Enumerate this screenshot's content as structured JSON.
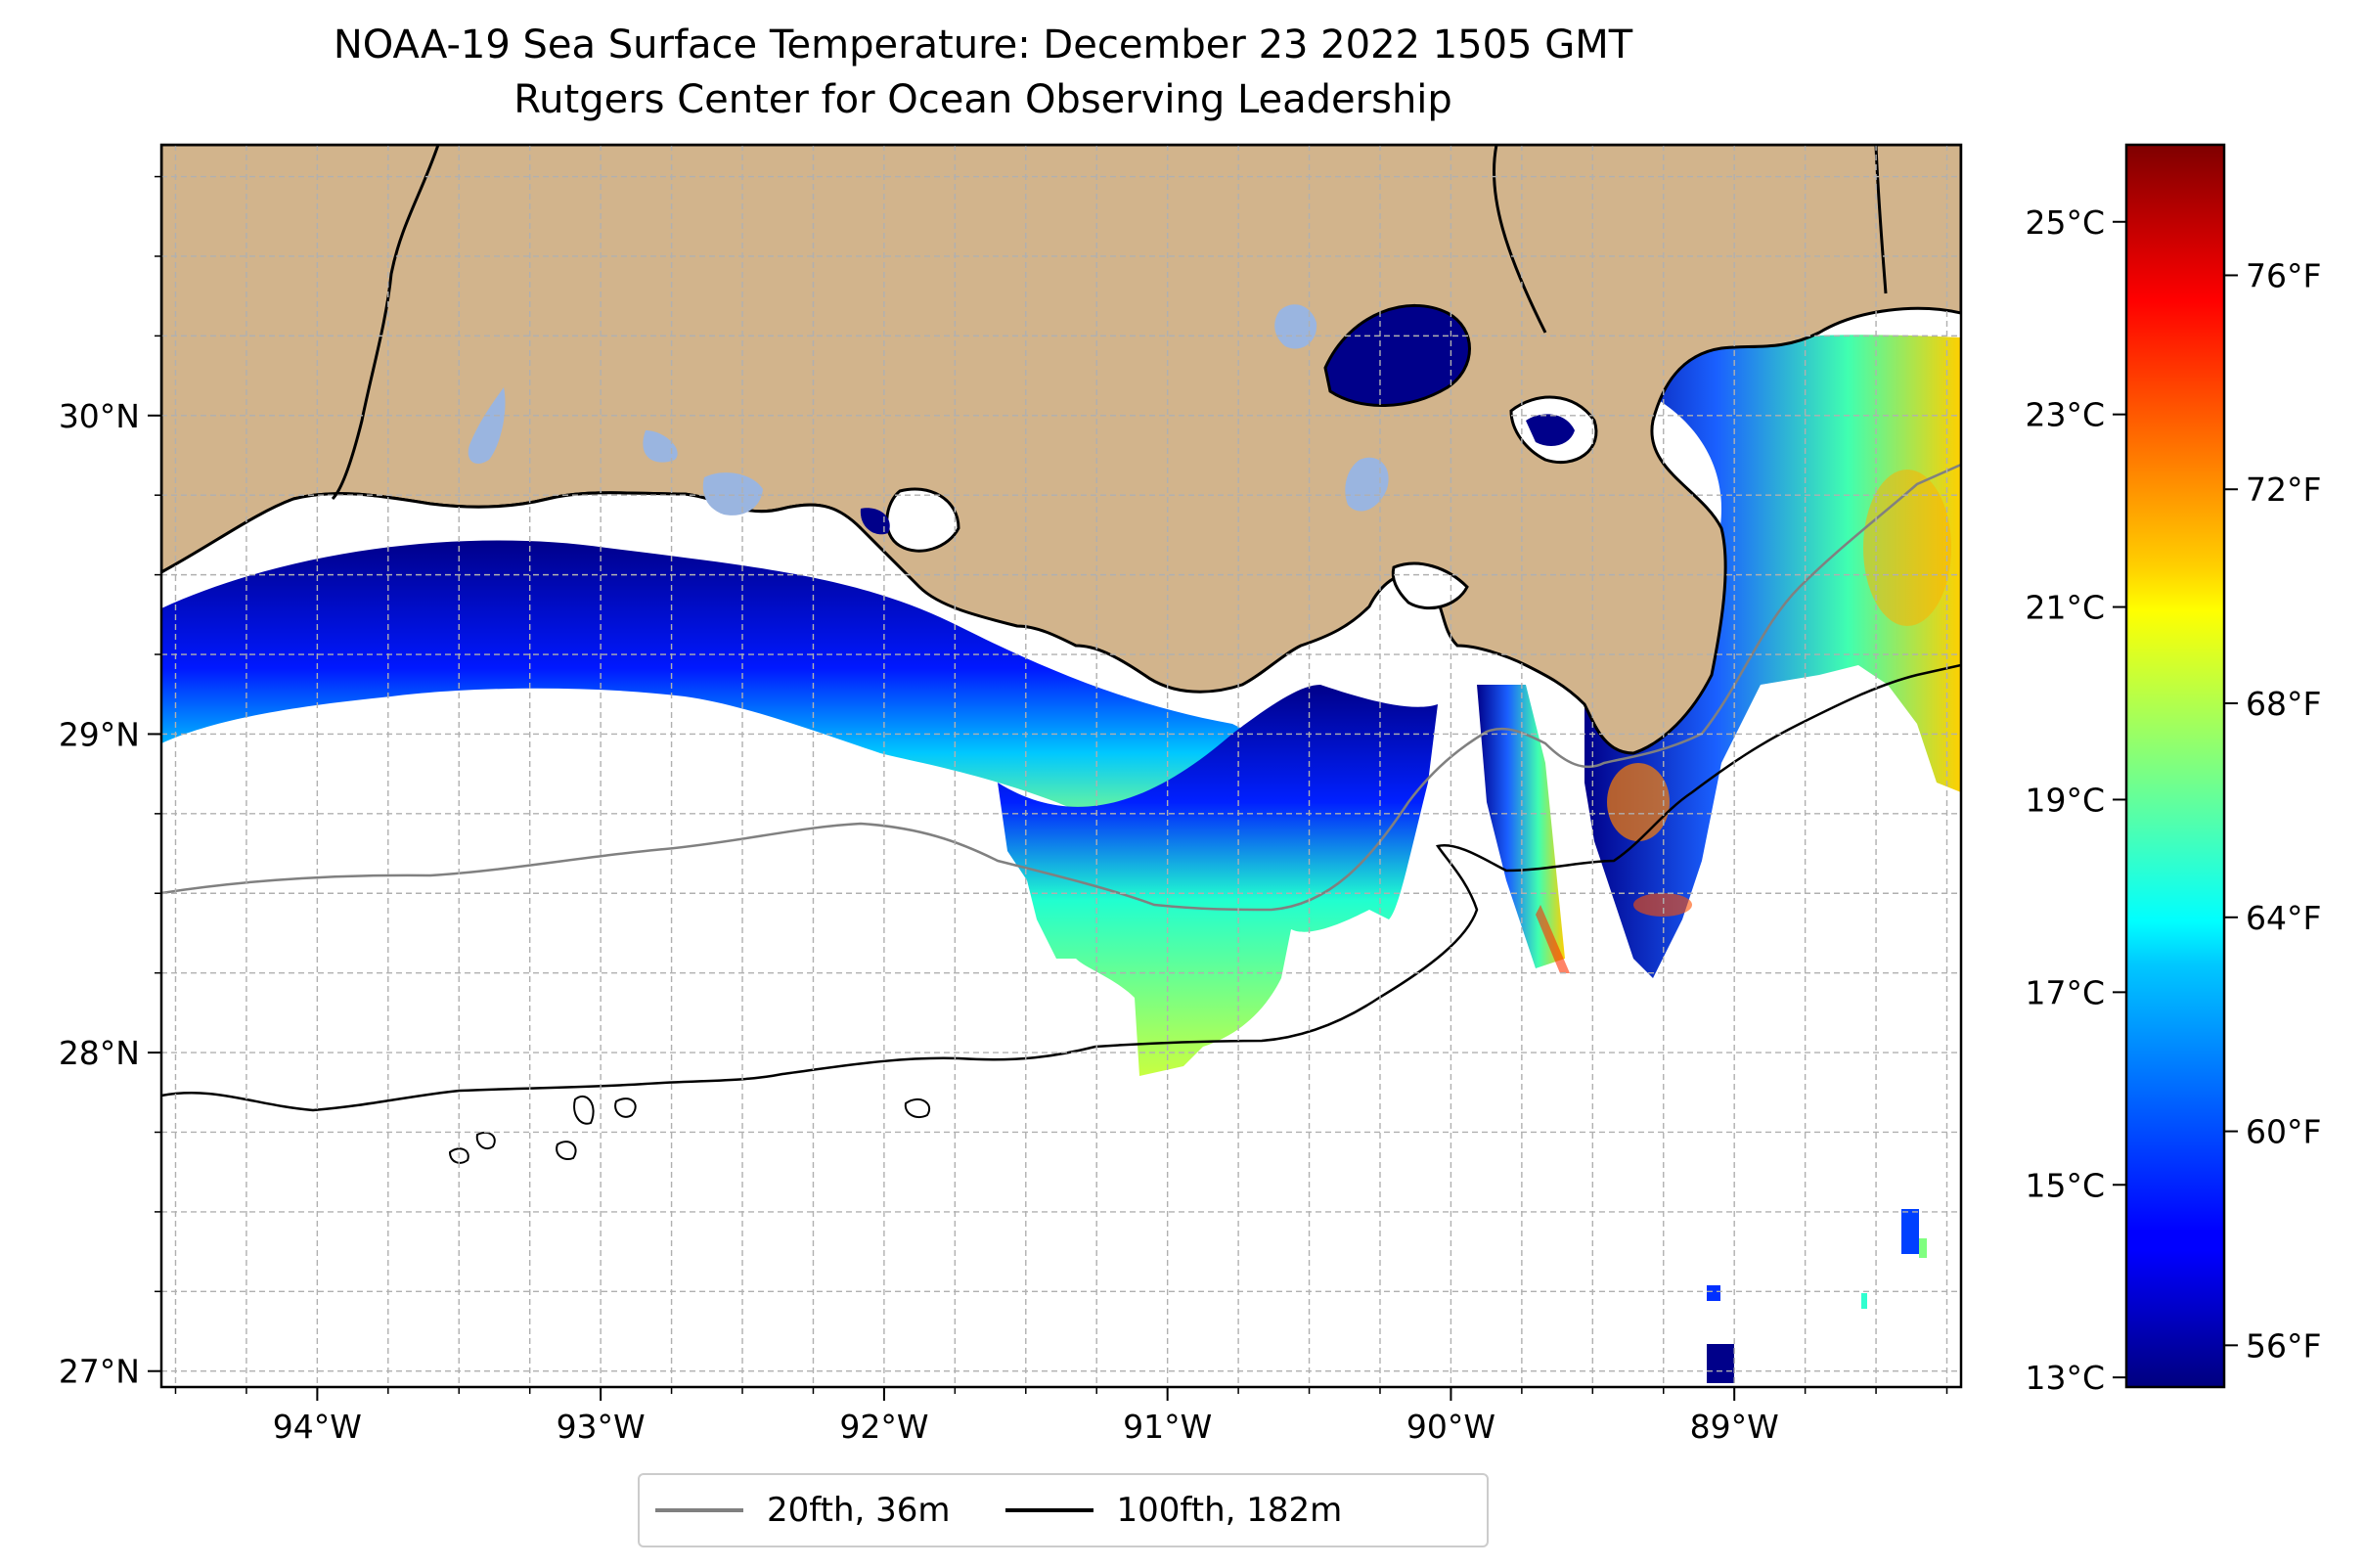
{
  "title": "NOAA-19 Sea Surface Temperature: December 23 2022 1505 GMT",
  "subtitle": "Rutgers Center for Ocean Observing Leadership",
  "colors": {
    "land": "#d2b48c",
    "lakes": "#9ab5e0",
    "coast": "#000000",
    "isobath_20fth": "#808080",
    "isobath_100fth": "#000000",
    "grid": "#b0b0b0"
  },
  "map": {
    "lon_range": [
      -94.55,
      -88.2
    ],
    "lat_range": [
      26.95,
      30.85
    ],
    "lon_ticks": [
      -94,
      -93,
      -92,
      -91,
      -90,
      -89
    ],
    "lon_tick_labels": [
      "94°W",
      "93°W",
      "92°W",
      "91°W",
      "90°W",
      "89°W"
    ],
    "lat_ticks": [
      27,
      28,
      29,
      30
    ],
    "lat_tick_labels": [
      "27°N",
      "28°N",
      "29°N",
      "30°N"
    ]
  },
  "colorbar": {
    "colormap": "jet",
    "celsius_range": [
      12.9,
      25.8
    ],
    "celsius_ticks": [
      13,
      15,
      17,
      19,
      21,
      23,
      25
    ],
    "celsius_labels": [
      "13°C",
      "15°C",
      "17°C",
      "19°C",
      "21°C",
      "23°C",
      "25°C"
    ],
    "fahrenheit_ticks": [
      56,
      60,
      64,
      68,
      72,
      76
    ],
    "fahrenheit_labels": [
      "56°F",
      "60°F",
      "64°F",
      "68°F",
      "72°F",
      "76°F"
    ]
  },
  "legend": {
    "items": [
      {
        "label": "20fth, 36m",
        "color": "#808080"
      },
      {
        "label": "100fth, 182m",
        "color": "#000000"
      }
    ]
  }
}
